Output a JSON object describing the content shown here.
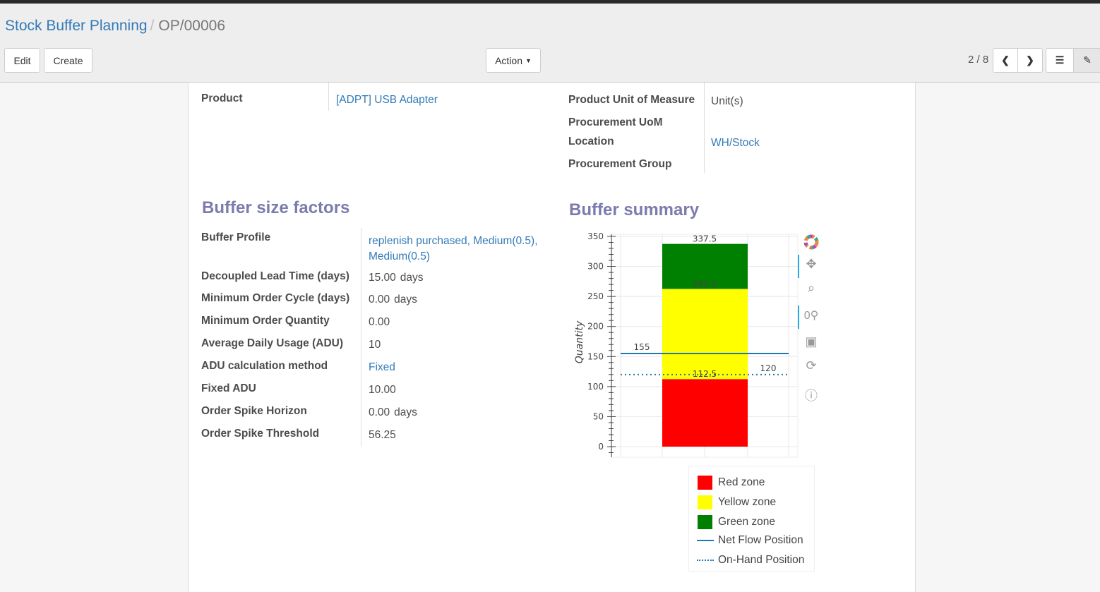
{
  "breadcrumb": {
    "parent": "Stock Buffer Planning",
    "current": "OP/00006"
  },
  "toolbar": {
    "edit": "Edit",
    "create": "Create",
    "action": "Action",
    "pager": "2 / 8"
  },
  "fields_top_left": {
    "product_label": "Product",
    "product_value": "[ADPT] USB Adapter"
  },
  "fields_top_right": [
    {
      "label": "Product Unit of Measure",
      "value": "Unit(s)"
    },
    {
      "label": "Procurement UoM",
      "value": ""
    },
    {
      "label": "Location",
      "value": "WH/Stock"
    },
    {
      "label": "Procurement Group",
      "value": ""
    }
  ],
  "buffer_size": {
    "title": "Buffer size factors",
    "rows": [
      {
        "label": "Buffer Profile",
        "value": "replenish purchased, Medium(0.5), Medium(0.5)",
        "unit": ""
      },
      {
        "label": "Decoupled Lead Time (days)",
        "value": "15.00",
        "unit": "days"
      },
      {
        "label": "Minimum Order Cycle (days)",
        "value": "0.00",
        "unit": "days"
      },
      {
        "label": "Minimum Order Quantity",
        "value": "0.00",
        "unit": ""
      },
      {
        "label": "Average Daily Usage (ADU)",
        "value": "10",
        "unit": ""
      },
      {
        "label": "ADU calculation method",
        "value": "Fixed",
        "unit": ""
      },
      {
        "label": "Fixed ADU",
        "value": "10.00",
        "unit": ""
      },
      {
        "label": "Order Spike Horizon",
        "value": "0.00",
        "unit": "days"
      },
      {
        "label": "Order Spike Threshold",
        "value": "56.25",
        "unit": ""
      }
    ]
  },
  "buffer_summary": {
    "title": "Buffer summary"
  },
  "chart_data": {
    "type": "bar",
    "ylabel": "Quantity",
    "ylim": [
      0,
      350
    ],
    "yticks": [
      0,
      50,
      100,
      150,
      200,
      250,
      300,
      350
    ],
    "grid": true,
    "stacked_zones": [
      {
        "name": "Red zone",
        "from": 0,
        "to": 112.5,
        "color": "#ff0000",
        "label": "112.5"
      },
      {
        "name": "Yellow zone",
        "from": 112.5,
        "to": 262.5,
        "color": "#ffff00",
        "label": "262.5"
      },
      {
        "name": "Green zone",
        "from": 262.5,
        "to": 337.5,
        "color": "#008000",
        "label": "337.5"
      }
    ],
    "lines": [
      {
        "name": "Net Flow Position",
        "value": 155,
        "style": "solid",
        "color": "#1f77b4",
        "label": "155"
      },
      {
        "name": "On-Hand Position",
        "value": 120,
        "style": "dotted",
        "color": "#1f77b4",
        "label": "120"
      }
    ],
    "legend_position": "bottom"
  },
  "chart_tools": [
    "bokeh-logo-icon",
    "pan-icon",
    "box-zoom-icon",
    "wheel-zoom-icon",
    "save-icon",
    "reset-icon",
    "help-icon"
  ]
}
